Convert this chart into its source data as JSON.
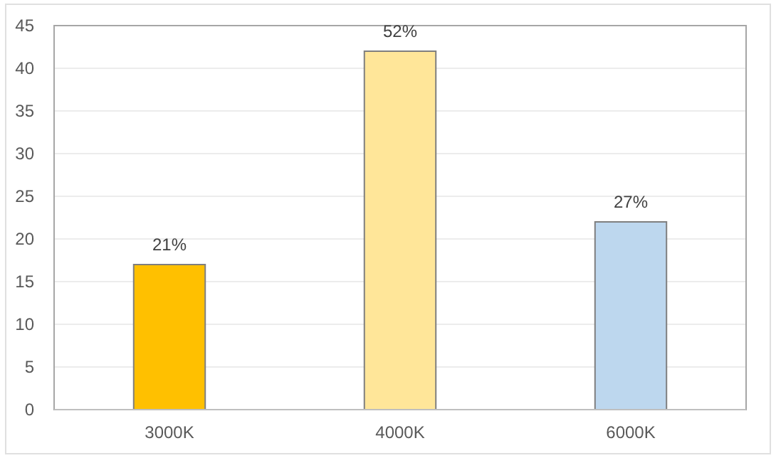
{
  "chart_data": {
    "type": "bar",
    "categories": [
      "3000K",
      "4000K",
      "6000K"
    ],
    "values": [
      17,
      42,
      22
    ],
    "colors": [
      "#ffc000",
      "#ffe699",
      "#bdd7ee"
    ],
    "annotations": [
      {
        "text": "21%",
        "x": "3000K",
        "y": 17
      },
      {
        "text": "52%",
        "x": "4000K",
        "y": 42
      },
      {
        "text": "27%",
        "x": "6000K",
        "y": 22
      }
    ],
    "ylim": [
      0,
      45
    ],
    "yticks": [
      0,
      5,
      10,
      15,
      20,
      25,
      30,
      35,
      40,
      45
    ],
    "grid": "y"
  }
}
